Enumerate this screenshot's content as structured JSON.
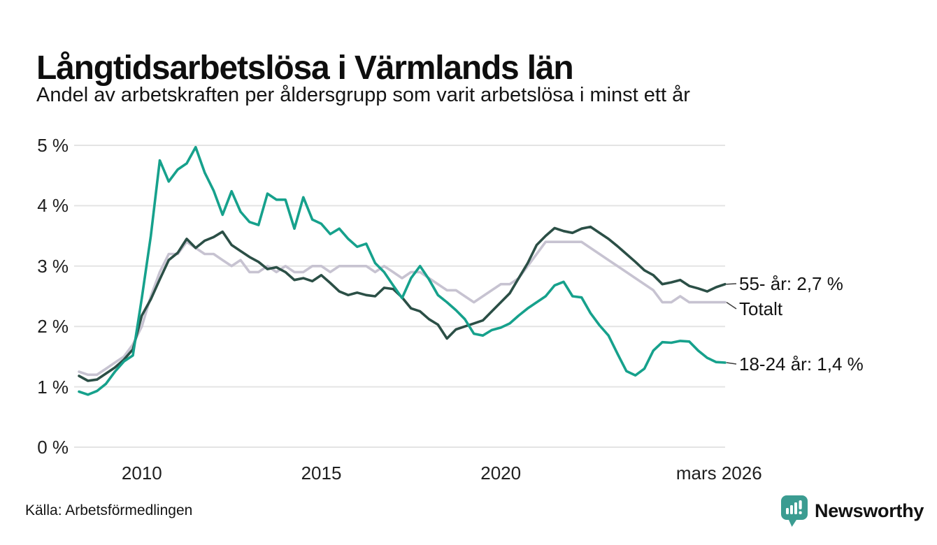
{
  "header": {},
  "chart_data": {
    "type": "line",
    "title": "Långtidsarbetslösa i Värmlands län",
    "subtitle": "Andel av arbetskraften per åldersgrupp som varit arbetslösa i minst ett år",
    "unit": "%",
    "ylim": [
      0,
      5
    ],
    "grid": "horizontal",
    "legend": "end-of-line-labels",
    "y_ticks": [
      "5 %",
      "4 %",
      "3 %",
      "2 %",
      "1 %",
      "0 %"
    ],
    "x_ticks": [
      {
        "label": "2010",
        "year": 2010
      },
      {
        "label": "2015",
        "year": 2015
      },
      {
        "label": "2020",
        "year": 2020
      },
      {
        "label": "mars 2026",
        "year": 2026.08
      }
    ],
    "x": [
      2008.25,
      2008.5,
      2008.75,
      2009,
      2009.25,
      2009.5,
      2009.75,
      2010,
      2010.25,
      2010.5,
      2010.75,
      2011,
      2011.25,
      2011.5,
      2011.75,
      2012,
      2012.25,
      2012.5,
      2012.75,
      2013,
      2013.25,
      2013.5,
      2013.75,
      2014,
      2014.25,
      2014.5,
      2014.75,
      2015,
      2015.25,
      2015.5,
      2015.75,
      2016,
      2016.25,
      2016.5,
      2016.75,
      2017,
      2017.25,
      2017.5,
      2017.75,
      2018,
      2018.25,
      2018.5,
      2018.75,
      2019,
      2019.25,
      2019.5,
      2019.75,
      2020,
      2020.25,
      2020.5,
      2020.75,
      2021,
      2021.25,
      2021.5,
      2021.75,
      2022,
      2022.25,
      2022.5,
      2022.75,
      2023,
      2023.25,
      2023.5,
      2023.75,
      2024,
      2024.25,
      2024.5,
      2024.75,
      2025,
      2025.25,
      2025.5,
      2025.75,
      2026,
      2026.25
    ],
    "series": [
      {
        "name": "55- år",
        "label": "55- år: 2,7 %",
        "latest_value": "2,7 %",
        "color": "#2b4f46",
        "values": [
          1.18,
          1.1,
          1.12,
          1.22,
          1.32,
          1.45,
          1.62,
          2.18,
          2.45,
          2.78,
          3.1,
          3.22,
          3.45,
          3.3,
          3.42,
          3.48,
          3.57,
          3.35,
          3.25,
          3.15,
          3.07,
          2.95,
          2.98,
          2.9,
          2.77,
          2.8,
          2.75,
          2.85,
          2.72,
          2.58,
          2.52,
          2.56,
          2.52,
          2.5,
          2.64,
          2.62,
          2.48,
          2.3,
          2.25,
          2.12,
          2.03,
          1.8,
          1.95,
          2.0,
          2.05,
          2.1,
          2.25,
          2.4,
          2.55,
          2.8,
          3.05,
          3.35,
          3.5,
          3.63,
          3.58,
          3.55,
          3.62,
          3.65,
          3.55,
          3.45,
          3.33,
          3.2,
          3.07,
          2.93,
          2.85,
          2.7,
          2.73,
          2.77,
          2.67,
          2.63,
          2.58,
          2.65,
          2.7
        ]
      },
      {
        "name": "Totalt",
        "label": "Totalt",
        "latest_value": "2,4 %",
        "color": "#c7c3d1",
        "values": [
          1.25,
          1.2,
          1.2,
          1.3,
          1.4,
          1.5,
          1.7,
          2.0,
          2.5,
          2.9,
          3.2,
          3.2,
          3.4,
          3.3,
          3.2,
          3.2,
          3.1,
          3.0,
          3.1,
          2.9,
          2.9,
          3.0,
          2.9,
          3.0,
          2.9,
          2.9,
          3.0,
          3.0,
          2.9,
          3.0,
          3.0,
          3.0,
          3.0,
          2.9,
          3.0,
          2.9,
          2.8,
          2.9,
          2.9,
          2.8,
          2.7,
          2.6,
          2.6,
          2.5,
          2.4,
          2.5,
          2.6,
          2.7,
          2.7,
          2.8,
          3.0,
          3.2,
          3.4,
          3.4,
          3.4,
          3.4,
          3.4,
          3.3,
          3.2,
          3.1,
          3.0,
          2.9,
          2.8,
          2.7,
          2.6,
          2.4,
          2.4,
          2.5,
          2.4,
          2.4,
          2.4,
          2.4,
          2.4
        ]
      },
      {
        "name": "18-24 år",
        "label": "18-24 år: 1,4 %",
        "latest_value": "1,4 %",
        "color": "#16a18c",
        "values": [
          0.92,
          0.87,
          0.93,
          1.05,
          1.25,
          1.42,
          1.52,
          2.47,
          3.5,
          4.75,
          4.4,
          4.6,
          4.7,
          4.97,
          4.55,
          4.25,
          3.85,
          4.24,
          3.9,
          3.73,
          3.68,
          4.2,
          4.1,
          4.1,
          3.62,
          4.14,
          3.77,
          3.7,
          3.53,
          3.62,
          3.45,
          3.32,
          3.37,
          3.05,
          2.9,
          2.68,
          2.47,
          2.8,
          3.0,
          2.78,
          2.52,
          2.4,
          2.27,
          2.12,
          1.88,
          1.85,
          1.94,
          1.98,
          2.05,
          2.18,
          2.3,
          2.4,
          2.5,
          2.68,
          2.74,
          2.5,
          2.48,
          2.22,
          2.02,
          1.85,
          1.55,
          1.26,
          1.19,
          1.3,
          1.6,
          1.74,
          1.73,
          1.76,
          1.75,
          1.6,
          1.48,
          1.41,
          1.4
        ]
      }
    ],
    "colors": {
      "gridline": "#e4e4e4",
      "connector": "#3c3c3c"
    }
  },
  "footer": {
    "source": "Källa: Arbetsförmedlingen",
    "logo_text": "Newsworthy",
    "logo_color": "#3b9c91"
  }
}
